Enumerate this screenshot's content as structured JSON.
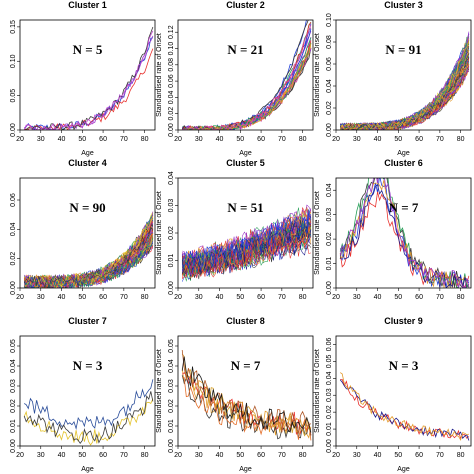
{
  "chart_data": [
    {
      "type": "line",
      "title": "Cluster 1",
      "annotation": "N = 5",
      "xlabel": "Age",
      "ylabel": "",
      "xlim": [
        20,
        85
      ],
      "ylim": [
        0,
        0.16
      ],
      "xticks": [
        "20",
        "30",
        "40",
        "50",
        "60",
        "70",
        "80"
      ],
      "yticks": [
        "0.00",
        "0.05",
        "0.10",
        "0.15"
      ],
      "ytick_values": [
        0,
        0.05,
        0.1,
        0.15
      ],
      "n_lines": 5,
      "trend": "exp",
      "start": 0.003,
      "end": 0.13,
      "noise": 0.006,
      "colors": [
        "#1f3fd9",
        "#e8332f",
        "#9b3bc9",
        "#3a3a3a",
        "#c04ad0"
      ]
    },
    {
      "type": "line",
      "title": "Cluster 2",
      "annotation": "N = 21",
      "xlabel": "Age",
      "ylabel": "Standardised rate of Onset",
      "xlim": [
        20,
        85
      ],
      "ylim": [
        0,
        0.135
      ],
      "xticks": [
        "20",
        "30",
        "40",
        "50",
        "60",
        "70",
        "80"
      ],
      "yticks": [
        "0.00",
        "0.02",
        "0.04",
        "0.06",
        "0.08",
        "0.10",
        "0.12"
      ],
      "ytick_values": [
        0,
        0.02,
        0.04,
        0.06,
        0.08,
        0.1,
        0.12
      ],
      "n_lines": 21,
      "trend": "exp",
      "start": 0.001,
      "end": 0.125,
      "noise": 0.004,
      "colors": [
        "#1f3fd9",
        "#e8332f",
        "#9b3bc9",
        "#3a3a3a",
        "#2aa05a",
        "#e39a2b",
        "#d44ba8"
      ]
    },
    {
      "type": "line",
      "title": "Cluster 3",
      "annotation": "N = 91",
      "xlabel": "Age",
      "ylabel": "Standardised rate of Onset",
      "xlim": [
        20,
        85
      ],
      "ylim": [
        0,
        0.1
      ],
      "xticks": [
        "20",
        "30",
        "40",
        "50",
        "60",
        "70",
        "80"
      ],
      "yticks": [
        "0.00",
        "0.02",
        "0.04",
        "0.06",
        "0.08",
        "0.10"
      ],
      "ytick_values": [
        0,
        0.02,
        0.04,
        0.06,
        0.08,
        0.1
      ],
      "n_lines": 91,
      "trend": "exp",
      "start": 0.002,
      "end": 0.07,
      "noise": 0.004,
      "colors": [
        "#1f3fd9",
        "#e8332f",
        "#9b3bc9",
        "#2aa05a",
        "#e3c22b",
        "#3a3a3a",
        "#e39a2b"
      ]
    },
    {
      "type": "line",
      "title": "Cluster 4",
      "annotation": "N = 90",
      "xlabel": "",
      "ylabel": "",
      "xlim": [
        20,
        85
      ],
      "ylim": [
        0,
        0.075
      ],
      "xticks": [
        "20",
        "30",
        "40",
        "50",
        "60",
        "70",
        "80"
      ],
      "yticks": [
        "0.00",
        "0.02",
        "0.04",
        "0.06"
      ],
      "ytick_values": [
        0,
        0.02,
        0.04,
        0.06
      ],
      "n_lines": 90,
      "trend": "exp",
      "start": 0.004,
      "end": 0.04,
      "noise": 0.004,
      "colors": [
        "#1f3fd9",
        "#e8332f",
        "#9b3bc9",
        "#2aa05a",
        "#e3c22b",
        "#3a3a3a",
        "#e39a2b"
      ]
    },
    {
      "type": "line",
      "title": "Cluster 5",
      "annotation": "N = 51",
      "xlabel": "",
      "ylabel": "Standardised rate of Onset",
      "xlim": [
        20,
        85
      ],
      "ylim": [
        0,
        0.04
      ],
      "xticks": [
        "20",
        "30",
        "40",
        "50",
        "60",
        "70",
        "80"
      ],
      "yticks": [
        "0.00",
        "0.01",
        "0.02",
        "0.03",
        "0.04"
      ],
      "ytick_values": [
        0,
        0.01,
        0.02,
        0.03,
        0.04
      ],
      "n_lines": 51,
      "trend": "rise",
      "start": 0.008,
      "end": 0.022,
      "noise": 0.004,
      "colors": [
        "#1f3fd9",
        "#e8332f",
        "#9b3bc9",
        "#2aa05a",
        "#3a3a3a",
        "#e39a2b",
        "#1a1a8a"
      ]
    },
    {
      "type": "line",
      "title": "Cluster 6",
      "annotation": "N = 7",
      "xlabel": "",
      "ylabel": "Standardised rate of Onset",
      "xlim": [
        20,
        85
      ],
      "ylim": [
        0,
        0.045
      ],
      "xticks": [
        "20",
        "30",
        "40",
        "50",
        "60",
        "70",
        "80"
      ],
      "yticks": [
        "0.00",
        "0.01",
        "0.02",
        "0.03",
        "0.04"
      ],
      "ytick_values": [
        0,
        0.01,
        0.02,
        0.03,
        0.04
      ],
      "n_lines": 7,
      "trend": "hump",
      "start": 0.02,
      "end": 0.003,
      "peak": 0.035,
      "noise": 0.004,
      "colors": [
        "#1f3fd9",
        "#e8332f",
        "#3a3a3a",
        "#2aa05a",
        "#e39a2b",
        "#1a1a8a",
        "#9b3bc9"
      ]
    },
    {
      "type": "line",
      "title": "Cluster 7",
      "annotation": "N = 3",
      "xlabel": "Age",
      "ylabel": "",
      "xlim": [
        20,
        85
      ],
      "ylim": [
        0,
        0.055
      ],
      "xticks": [
        "20",
        "30",
        "40",
        "50",
        "60",
        "70",
        "80"
      ],
      "yticks": [
        "0.00",
        "0.01",
        "0.02",
        "0.03",
        "0.04",
        "0.05"
      ],
      "ytick_values": [
        0,
        0.01,
        0.02,
        0.03,
        0.04,
        0.05
      ],
      "n_lines": 3,
      "trend": "u",
      "start": 0.02,
      "end": 0.03,
      "noise": 0.004,
      "colors": [
        "#2a4d9a",
        "#e3c22b",
        "#3a3a3a"
      ]
    },
    {
      "type": "line",
      "title": "Cluster 8",
      "annotation": "N = 7",
      "xlabel": "Age",
      "ylabel": "Standardised rate of Onset",
      "xlim": [
        20,
        85
      ],
      "ylim": [
        0,
        0.055
      ],
      "xticks": [
        "20",
        "30",
        "40",
        "50",
        "60",
        "70",
        "80"
      ],
      "yticks": [
        "0.00",
        "0.01",
        "0.02",
        "0.03",
        "0.04",
        "0.05"
      ],
      "ytick_values": [
        0,
        0.01,
        0.02,
        0.03,
        0.04,
        0.05
      ],
      "n_lines": 7,
      "trend": "decay",
      "start": 0.035,
      "end": 0.008,
      "noise": 0.006,
      "colors": [
        "#e39a2b",
        "#e8332f",
        "#3a3a3a",
        "#e36f2b",
        "#d4a02b",
        "#b05a2b",
        "#1a1a1a"
      ]
    },
    {
      "type": "line",
      "title": "Cluster 9",
      "annotation": "N = 3",
      "xlabel": "Age",
      "ylabel": "Standardised rate of Onset",
      "xlim": [
        20,
        85
      ],
      "ylim": [
        0,
        0.065
      ],
      "xticks": [
        "20",
        "30",
        "40",
        "50",
        "60",
        "70",
        "80"
      ],
      "yticks": [
        "0.00",
        "0.01",
        "0.02",
        "0.03",
        "0.04",
        "0.05",
        "0.06"
      ],
      "ytick_values": [
        0,
        0.01,
        0.02,
        0.03,
        0.04,
        0.05,
        0.06
      ],
      "n_lines": 3,
      "trend": "decay",
      "start": 0.045,
      "end": 0.005,
      "noise": 0.003,
      "colors": [
        "#e8332f",
        "#1a1a8a",
        "#e39a2b"
      ]
    }
  ]
}
